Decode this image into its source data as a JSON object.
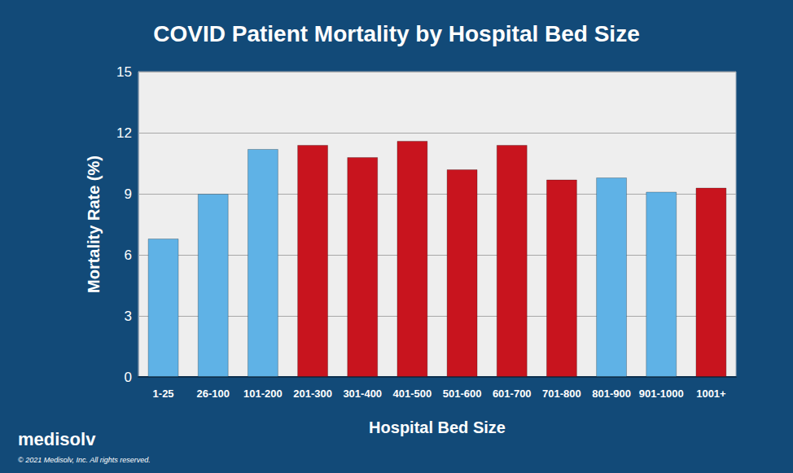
{
  "chart_data": {
    "type": "bar",
    "title": "COVID Patient Mortality by Hospital Bed Size",
    "x_label": "Hospital Bed Size",
    "y_label": "Mortality Rate (%)",
    "categories": [
      "1-25",
      "26-100",
      "101-200",
      "201-300",
      "301-400",
      "401-500",
      "501-600",
      "601-700",
      "701-800",
      "801-900",
      "901-1000",
      "1001+"
    ],
    "values": [
      6.8,
      9.0,
      11.2,
      11.4,
      10.8,
      11.6,
      10.2,
      11.4,
      9.7,
      9.8,
      9.1,
      9.3
    ],
    "colors": [
      "#5fb2e6",
      "#5fb2e6",
      "#5fb2e6",
      "#c8141e",
      "#c8141e",
      "#c8141e",
      "#c8141e",
      "#c8141e",
      "#c8141e",
      "#5fb2e6",
      "#5fb2e6",
      "#c8141e"
    ],
    "ylim": [
      0,
      15
    ],
    "yticks": [
      0,
      3,
      6,
      9,
      12,
      15
    ],
    "grid": true,
    "annotations": [
      "medisolv",
      "© 2021 Medisolv, Inc. All rights reserved."
    ]
  }
}
